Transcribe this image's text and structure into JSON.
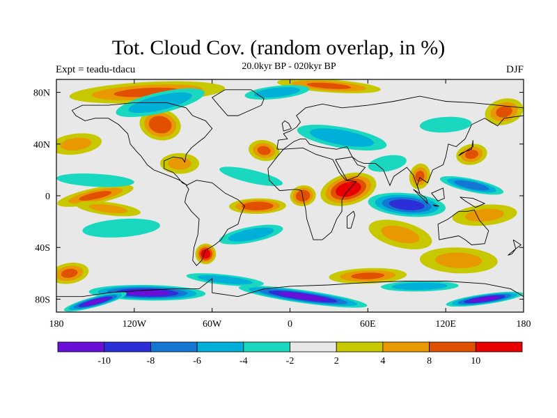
{
  "title": "Tot. Cloud Cov. (random overlap, in %)",
  "subtitle": "20.0kyr BP - 020kyr BP",
  "left_label": "Expt = teadu-tdacu",
  "right_label": "DJF",
  "chart_data": {
    "type": "heatmap",
    "projection": "cylindrical equidistant",
    "xlim": [
      -180,
      180
    ],
    "ylim": [
      -90,
      90
    ],
    "x_ticks": [
      {
        "value": -180,
        "label": "180"
      },
      {
        "value": -120,
        "label": "120W"
      },
      {
        "value": -60,
        "label": "60W"
      },
      {
        "value": 0,
        "label": "0"
      },
      {
        "value": 60,
        "label": "60E"
      },
      {
        "value": 120,
        "label": "120E"
      },
      {
        "value": 180,
        "label": "180"
      }
    ],
    "y_ticks": [
      {
        "value": 80,
        "label": "80N"
      },
      {
        "value": 40,
        "label": "40N"
      },
      {
        "value": 0,
        "label": "0"
      },
      {
        "value": -40,
        "label": "40S"
      },
      {
        "value": -80,
        "label": "80S"
      }
    ],
    "colorbar": {
      "levels": [
        -12,
        -10,
        -8,
        -6,
        -4,
        -2,
        2,
        4,
        8,
        10,
        12
      ],
      "labels": [
        "-10",
        "-8",
        "-6",
        "-4",
        "-2",
        "2",
        "4",
        "8",
        "10"
      ],
      "colors": [
        "#6a0fd8",
        "#2c2ed8",
        "#1477d4",
        "#00b0d8",
        "#1ad8c0",
        "#e8e8e8",
        "#c8c800",
        "#e89800",
        "#e05000",
        "#e80000"
      ]
    },
    "features": [
      {
        "lon": 45,
        "lat": 5,
        "rx": 22,
        "ry": 12,
        "value": 11
      },
      {
        "lon": 10,
        "lat": 0,
        "rx": 10,
        "ry": 8,
        "value": 9
      },
      {
        "lon": -25,
        "lat": -8,
        "rx": 22,
        "ry": 6,
        "value": 9
      },
      {
        "lon": -65,
        "lat": -45,
        "rx": 8,
        "ry": 8,
        "value": 11
      },
      {
        "lon": 100,
        "lat": 15,
        "rx": 8,
        "ry": 10,
        "value": 8
      },
      {
        "lon": 140,
        "lat": 32,
        "rx": 12,
        "ry": 8,
        "value": 8
      },
      {
        "lon": -110,
        "lat": 80,
        "rx": 60,
        "ry": 8,
        "value": 8
      },
      {
        "lon": 30,
        "lat": 85,
        "rx": 40,
        "ry": 5,
        "value": 8
      },
      {
        "lon": -100,
        "lat": 55,
        "rx": 16,
        "ry": 12,
        "value": 9
      },
      {
        "lon": -150,
        "lat": 0,
        "rx": 30,
        "ry": 6,
        "value": 8
      },
      {
        "lon": 150,
        "lat": -15,
        "rx": 25,
        "ry": 8,
        "value": 4
      },
      {
        "lon": 130,
        "lat": -50,
        "rx": 30,
        "ry": 10,
        "value": 4
      },
      {
        "lon": -20,
        "lat": 35,
        "rx": 12,
        "ry": 8,
        "value": 8
      },
      {
        "lon": 165,
        "lat": 65,
        "rx": 15,
        "ry": 10,
        "value": 8
      },
      {
        "lon": -165,
        "lat": 40,
        "rx": 20,
        "ry": 8,
        "value": 4
      },
      {
        "lon": -85,
        "lat": 25,
        "rx": 15,
        "ry": 8,
        "value": 4
      },
      {
        "lon": -140,
        "lat": -10,
        "rx": 25,
        "ry": 5,
        "value": 4
      },
      {
        "lon": 85,
        "lat": -30,
        "rx": 25,
        "ry": 10,
        "value": 4
      },
      {
        "lon": -170,
        "lat": -60,
        "rx": 15,
        "ry": 8,
        "value": 8
      },
      {
        "lon": 60,
        "lat": -62,
        "rx": 30,
        "ry": 6,
        "value": 8
      },
      {
        "lon": 90,
        "lat": -7,
        "rx": 30,
        "ry": 9,
        "value": -10
      },
      {
        "lon": 140,
        "lat": 8,
        "rx": 25,
        "ry": 5,
        "value": -8
      },
      {
        "lon": -30,
        "lat": -30,
        "rx": 25,
        "ry": 6,
        "value": -6
      },
      {
        "lon": -130,
        "lat": -25,
        "rx": 30,
        "ry": 7,
        "value": -4
      },
      {
        "lon": -150,
        "lat": 12,
        "rx": 30,
        "ry": 5,
        "value": -4
      },
      {
        "lon": 40,
        "lat": 45,
        "rx": 35,
        "ry": 8,
        "value": -6
      },
      {
        "lon": -100,
        "lat": 72,
        "rx": 35,
        "ry": 8,
        "value": -6
      },
      {
        "lon": -10,
        "lat": 80,
        "rx": 25,
        "ry": 5,
        "value": -6
      },
      {
        "lon": -110,
        "lat": -75,
        "rx": 45,
        "ry": 6,
        "value": -11
      },
      {
        "lon": 10,
        "lat": -78,
        "rx": 50,
        "ry": 5,
        "value": -11
      },
      {
        "lon": -150,
        "lat": -82,
        "rx": 25,
        "ry": 4,
        "value": -11
      },
      {
        "lon": 150,
        "lat": -80,
        "rx": 30,
        "ry": 4,
        "value": -11
      },
      {
        "lon": 100,
        "lat": -70,
        "rx": 30,
        "ry": 4,
        "value": -6
      },
      {
        "lon": -50,
        "lat": -65,
        "rx": 30,
        "ry": 4,
        "value": -6
      },
      {
        "lon": -30,
        "lat": 15,
        "rx": 25,
        "ry": 5,
        "value": -4
      },
      {
        "lon": 75,
        "lat": 25,
        "rx": 15,
        "ry": 6,
        "value": -4
      },
      {
        "lon": 120,
        "lat": 55,
        "rx": 20,
        "ry": 6,
        "value": -4
      }
    ]
  }
}
